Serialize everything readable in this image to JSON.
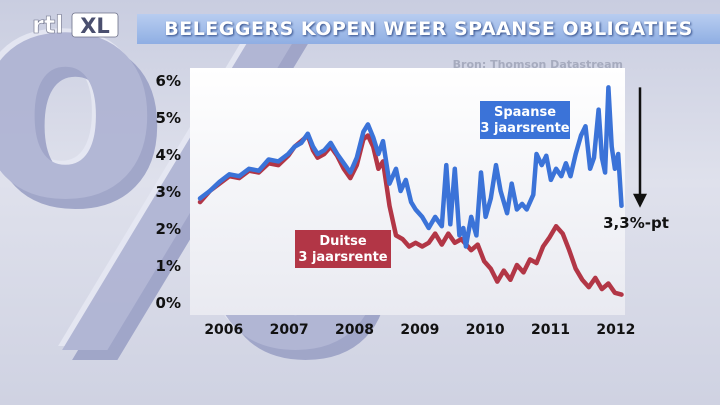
{
  "logo": {
    "text": "rtl",
    "badge": "XL"
  },
  "header": {
    "title": "BELEGGERS KOPEN WEER SPAANSE OBLIGATIES"
  },
  "source": "Bron: Thomson Datastream",
  "chart_data": {
    "type": "line",
    "title": "BELEGGERS KOPEN WEER SPAANSE OBLIGATIES",
    "xlabel": "",
    "ylabel": "",
    "x_ticks": [
      "2006",
      "2007",
      "2008",
      "2009",
      "2010",
      "2011",
      "2012"
    ],
    "y_ticks": [
      "0%",
      "1%",
      "2%",
      "3%",
      "4%",
      "5%",
      "6%"
    ],
    "xlim": [
      2005.85,
      2012.4
    ],
    "ylim": [
      0,
      6
    ],
    "grid": false,
    "series": [
      {
        "name": "Spaanse 3 jaarsrente",
        "label_lines": [
          "Spaanse",
          "3 jaarsrente"
        ],
        "color": "#3b73d8",
        "points": [
          [
            2005.85,
            2.8
          ],
          [
            2006.0,
            3.0
          ],
          [
            2006.15,
            3.25
          ],
          [
            2006.3,
            3.45
          ],
          [
            2006.45,
            3.4
          ],
          [
            2006.6,
            3.6
          ],
          [
            2006.75,
            3.55
          ],
          [
            2006.9,
            3.85
          ],
          [
            2007.05,
            3.8
          ],
          [
            2007.2,
            4.0
          ],
          [
            2007.3,
            4.2
          ],
          [
            2007.4,
            4.3
          ],
          [
            2007.5,
            4.55
          ],
          [
            2007.58,
            4.2
          ],
          [
            2007.65,
            4.0
          ],
          [
            2007.75,
            4.1
          ],
          [
            2007.85,
            4.3
          ],
          [
            2007.95,
            4.0
          ],
          [
            2008.05,
            3.75
          ],
          [
            2008.15,
            3.5
          ],
          [
            2008.25,
            3.9
          ],
          [
            2008.35,
            4.6
          ],
          [
            2008.42,
            4.8
          ],
          [
            2008.5,
            4.45
          ],
          [
            2008.58,
            4.0
          ],
          [
            2008.65,
            4.35
          ],
          [
            2008.75,
            3.2
          ],
          [
            2008.85,
            3.6
          ],
          [
            2008.92,
            3.0
          ],
          [
            2009.0,
            3.3
          ],
          [
            2009.08,
            2.7
          ],
          [
            2009.15,
            2.5
          ],
          [
            2009.25,
            2.3
          ],
          [
            2009.35,
            2.0
          ],
          [
            2009.45,
            2.3
          ],
          [
            2009.55,
            2.05
          ],
          [
            2009.62,
            3.7
          ],
          [
            2009.68,
            2.1
          ],
          [
            2009.75,
            3.6
          ],
          [
            2009.82,
            1.8
          ],
          [
            2009.88,
            2.0
          ],
          [
            2009.92,
            1.5
          ],
          [
            2010.0,
            2.3
          ],
          [
            2010.08,
            1.8
          ],
          [
            2010.15,
            3.5
          ],
          [
            2010.22,
            2.3
          ],
          [
            2010.3,
            2.8
          ],
          [
            2010.38,
            3.7
          ],
          [
            2010.45,
            3.0
          ],
          [
            2010.55,
            2.4
          ],
          [
            2010.62,
            3.2
          ],
          [
            2010.7,
            2.5
          ],
          [
            2010.78,
            2.65
          ],
          [
            2010.85,
            2.5
          ],
          [
            2010.95,
            2.9
          ],
          [
            2011.0,
            4.0
          ],
          [
            2011.08,
            3.7
          ],
          [
            2011.15,
            3.95
          ],
          [
            2011.22,
            3.3
          ],
          [
            2011.3,
            3.6
          ],
          [
            2011.38,
            3.4
          ],
          [
            2011.45,
            3.75
          ],
          [
            2011.52,
            3.4
          ],
          [
            2011.6,
            4.0
          ],
          [
            2011.68,
            4.5
          ],
          [
            2011.75,
            4.75
          ],
          [
            2011.82,
            3.6
          ],
          [
            2011.88,
            3.9
          ],
          [
            2011.95,
            5.2
          ],
          [
            2012.0,
            3.9
          ],
          [
            2012.05,
            3.5
          ],
          [
            2012.1,
            5.8
          ],
          [
            2012.15,
            4.2
          ],
          [
            2012.2,
            3.6
          ],
          [
            2012.25,
            4.0
          ],
          [
            2012.3,
            2.6
          ]
        ]
      },
      {
        "name": "Duitse 3 jaarsrente",
        "label_lines": [
          "Duitse",
          "3 jaarsrente"
        ],
        "color": "#b23646",
        "points": [
          [
            2005.85,
            2.7
          ],
          [
            2006.0,
            3.0
          ],
          [
            2006.15,
            3.2
          ],
          [
            2006.3,
            3.4
          ],
          [
            2006.45,
            3.35
          ],
          [
            2006.6,
            3.55
          ],
          [
            2006.75,
            3.5
          ],
          [
            2006.9,
            3.75
          ],
          [
            2007.05,
            3.7
          ],
          [
            2007.2,
            3.95
          ],
          [
            2007.3,
            4.2
          ],
          [
            2007.4,
            4.35
          ],
          [
            2007.5,
            4.5
          ],
          [
            2007.58,
            4.1
          ],
          [
            2007.65,
            3.9
          ],
          [
            2007.75,
            4.0
          ],
          [
            2007.85,
            4.2
          ],
          [
            2007.95,
            3.95
          ],
          [
            2008.05,
            3.6
          ],
          [
            2008.15,
            3.35
          ],
          [
            2008.25,
            3.7
          ],
          [
            2008.35,
            4.4
          ],
          [
            2008.42,
            4.5
          ],
          [
            2008.5,
            4.2
          ],
          [
            2008.58,
            3.6
          ],
          [
            2008.65,
            3.8
          ],
          [
            2008.75,
            2.6
          ],
          [
            2008.85,
            1.8
          ],
          [
            2008.95,
            1.7
          ],
          [
            2009.05,
            1.5
          ],
          [
            2009.15,
            1.6
          ],
          [
            2009.25,
            1.5
          ],
          [
            2009.35,
            1.6
          ],
          [
            2009.45,
            1.85
          ],
          [
            2009.55,
            1.55
          ],
          [
            2009.65,
            1.85
          ],
          [
            2009.75,
            1.6
          ],
          [
            2009.85,
            1.7
          ],
          [
            2010.0,
            1.4
          ],
          [
            2010.1,
            1.55
          ],
          [
            2010.2,
            1.1
          ],
          [
            2010.3,
            0.9
          ],
          [
            2010.4,
            0.55
          ],
          [
            2010.5,
            0.85
          ],
          [
            2010.6,
            0.6
          ],
          [
            2010.7,
            1.0
          ],
          [
            2010.8,
            0.8
          ],
          [
            2010.9,
            1.15
          ],
          [
            2011.0,
            1.05
          ],
          [
            2011.1,
            1.5
          ],
          [
            2011.2,
            1.75
          ],
          [
            2011.3,
            2.05
          ],
          [
            2011.4,
            1.85
          ],
          [
            2011.5,
            1.4
          ],
          [
            2011.6,
            0.9
          ],
          [
            2011.7,
            0.6
          ],
          [
            2011.8,
            0.4
          ],
          [
            2011.9,
            0.65
          ],
          [
            2012.0,
            0.35
          ],
          [
            2012.1,
            0.5
          ],
          [
            2012.2,
            0.25
          ],
          [
            2012.3,
            0.2
          ]
        ]
      }
    ],
    "annotations": [
      {
        "text": "3,3%-pt",
        "arrow": "down"
      }
    ]
  }
}
